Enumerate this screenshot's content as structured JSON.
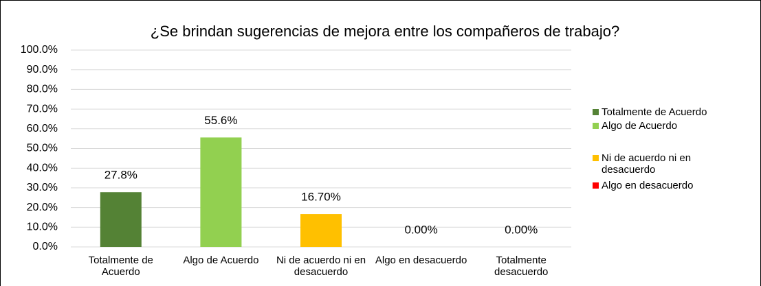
{
  "chart_data": {
    "type": "bar",
    "title": "¿Se brindan sugerencias de mejora entre los compañeros de trabajo?",
    "categories": [
      "Totalmente de Acuerdo",
      "Algo de Acuerdo",
      "Ni de acuerdo ni en desacuerdo",
      "Algo en desacuerdo",
      "Totalmente desacuerdo"
    ],
    "values": [
      27.8,
      55.6,
      16.7,
      0,
      0
    ],
    "value_labels": [
      "27.8%",
      "55.6%",
      "16.70%",
      "0.00%",
      "0.00%"
    ],
    "colors": [
      "#548235",
      "#92d050",
      "#ffc000",
      "#ff0000"
    ],
    "legend": [
      "Totalmente de Acuerdo",
      "Algo de Acuerdo",
      "Ni de acuerdo ni en desacuerdo",
      "Algo en desacuerdo"
    ],
    "legend_position": "right",
    "ylim": [
      0,
      100
    ],
    "yticks": [
      {
        "value": 0,
        "label": "0.0%"
      },
      {
        "value": 10,
        "label": "10.0%"
      },
      {
        "value": 20,
        "label": "20.0%"
      },
      {
        "value": 30,
        "label": "30.0%"
      },
      {
        "value": 40,
        "label": "40.0%"
      },
      {
        "value": 50,
        "label": "50.0%"
      },
      {
        "value": 60,
        "label": "60.0%"
      },
      {
        "value": 70,
        "label": "70.0%"
      },
      {
        "value": 80,
        "label": "80.0%"
      },
      {
        "value": 90,
        "label": "90.0%"
      },
      {
        "value": 100,
        "label": "100.0%"
      }
    ],
    "grid": true
  }
}
